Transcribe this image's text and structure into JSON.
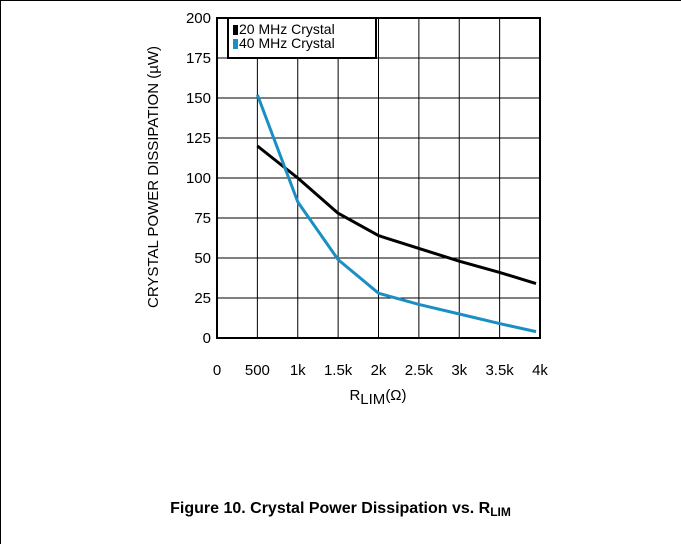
{
  "figure": {
    "caption_main": "Figure 10. Crystal Power Dissipation vs. R",
    "caption_sub": "LIM"
  },
  "chart_data": {
    "type": "line",
    "xlabel_main": "R",
    "xlabel_sub": "LIM",
    "xlabel_unit": "(Ω)",
    "ylabel": "CRYSTAL POWER DISSIPATION (µW)",
    "xlim": [
      0,
      4000
    ],
    "ylim": [
      0,
      200
    ],
    "grid": true,
    "legend_position": "top-left",
    "x_ticks": [
      {
        "value": 0,
        "label": "0"
      },
      {
        "value": 500,
        "label": "500"
      },
      {
        "value": 1000,
        "label": "1k"
      },
      {
        "value": 1500,
        "label": "1.5k"
      },
      {
        "value": 2000,
        "label": "2k"
      },
      {
        "value": 2500,
        "label": "2.5k"
      },
      {
        "value": 3000,
        "label": "3k"
      },
      {
        "value": 3500,
        "label": "3.5k"
      },
      {
        "value": 4000,
        "label": "4k"
      }
    ],
    "y_ticks": [
      {
        "value": 0,
        "label": "0"
      },
      {
        "value": 25,
        "label": "25"
      },
      {
        "value": 50,
        "label": "50"
      },
      {
        "value": 75,
        "label": "75"
      },
      {
        "value": 100,
        "label": "100"
      },
      {
        "value": 125,
        "label": "125"
      },
      {
        "value": 150,
        "label": "150"
      },
      {
        "value": 175,
        "label": "175"
      },
      {
        "value": 200,
        "label": "200"
      }
    ],
    "series": [
      {
        "name": "20 MHz Crystal",
        "color": "#000000",
        "x": [
          500,
          1000,
          1500,
          2000,
          2500,
          3000,
          3500,
          3950
        ],
        "y": [
          120,
          100,
          78,
          64,
          56,
          48,
          41,
          34
        ]
      },
      {
        "name": "40 MHz Crystal",
        "color": "#1a8fc4",
        "x": [
          500,
          1000,
          1500,
          2000,
          2500,
          3000,
          3500,
          3950
        ],
        "y": [
          152,
          85,
          49,
          28,
          21,
          15,
          9,
          4
        ]
      }
    ]
  }
}
